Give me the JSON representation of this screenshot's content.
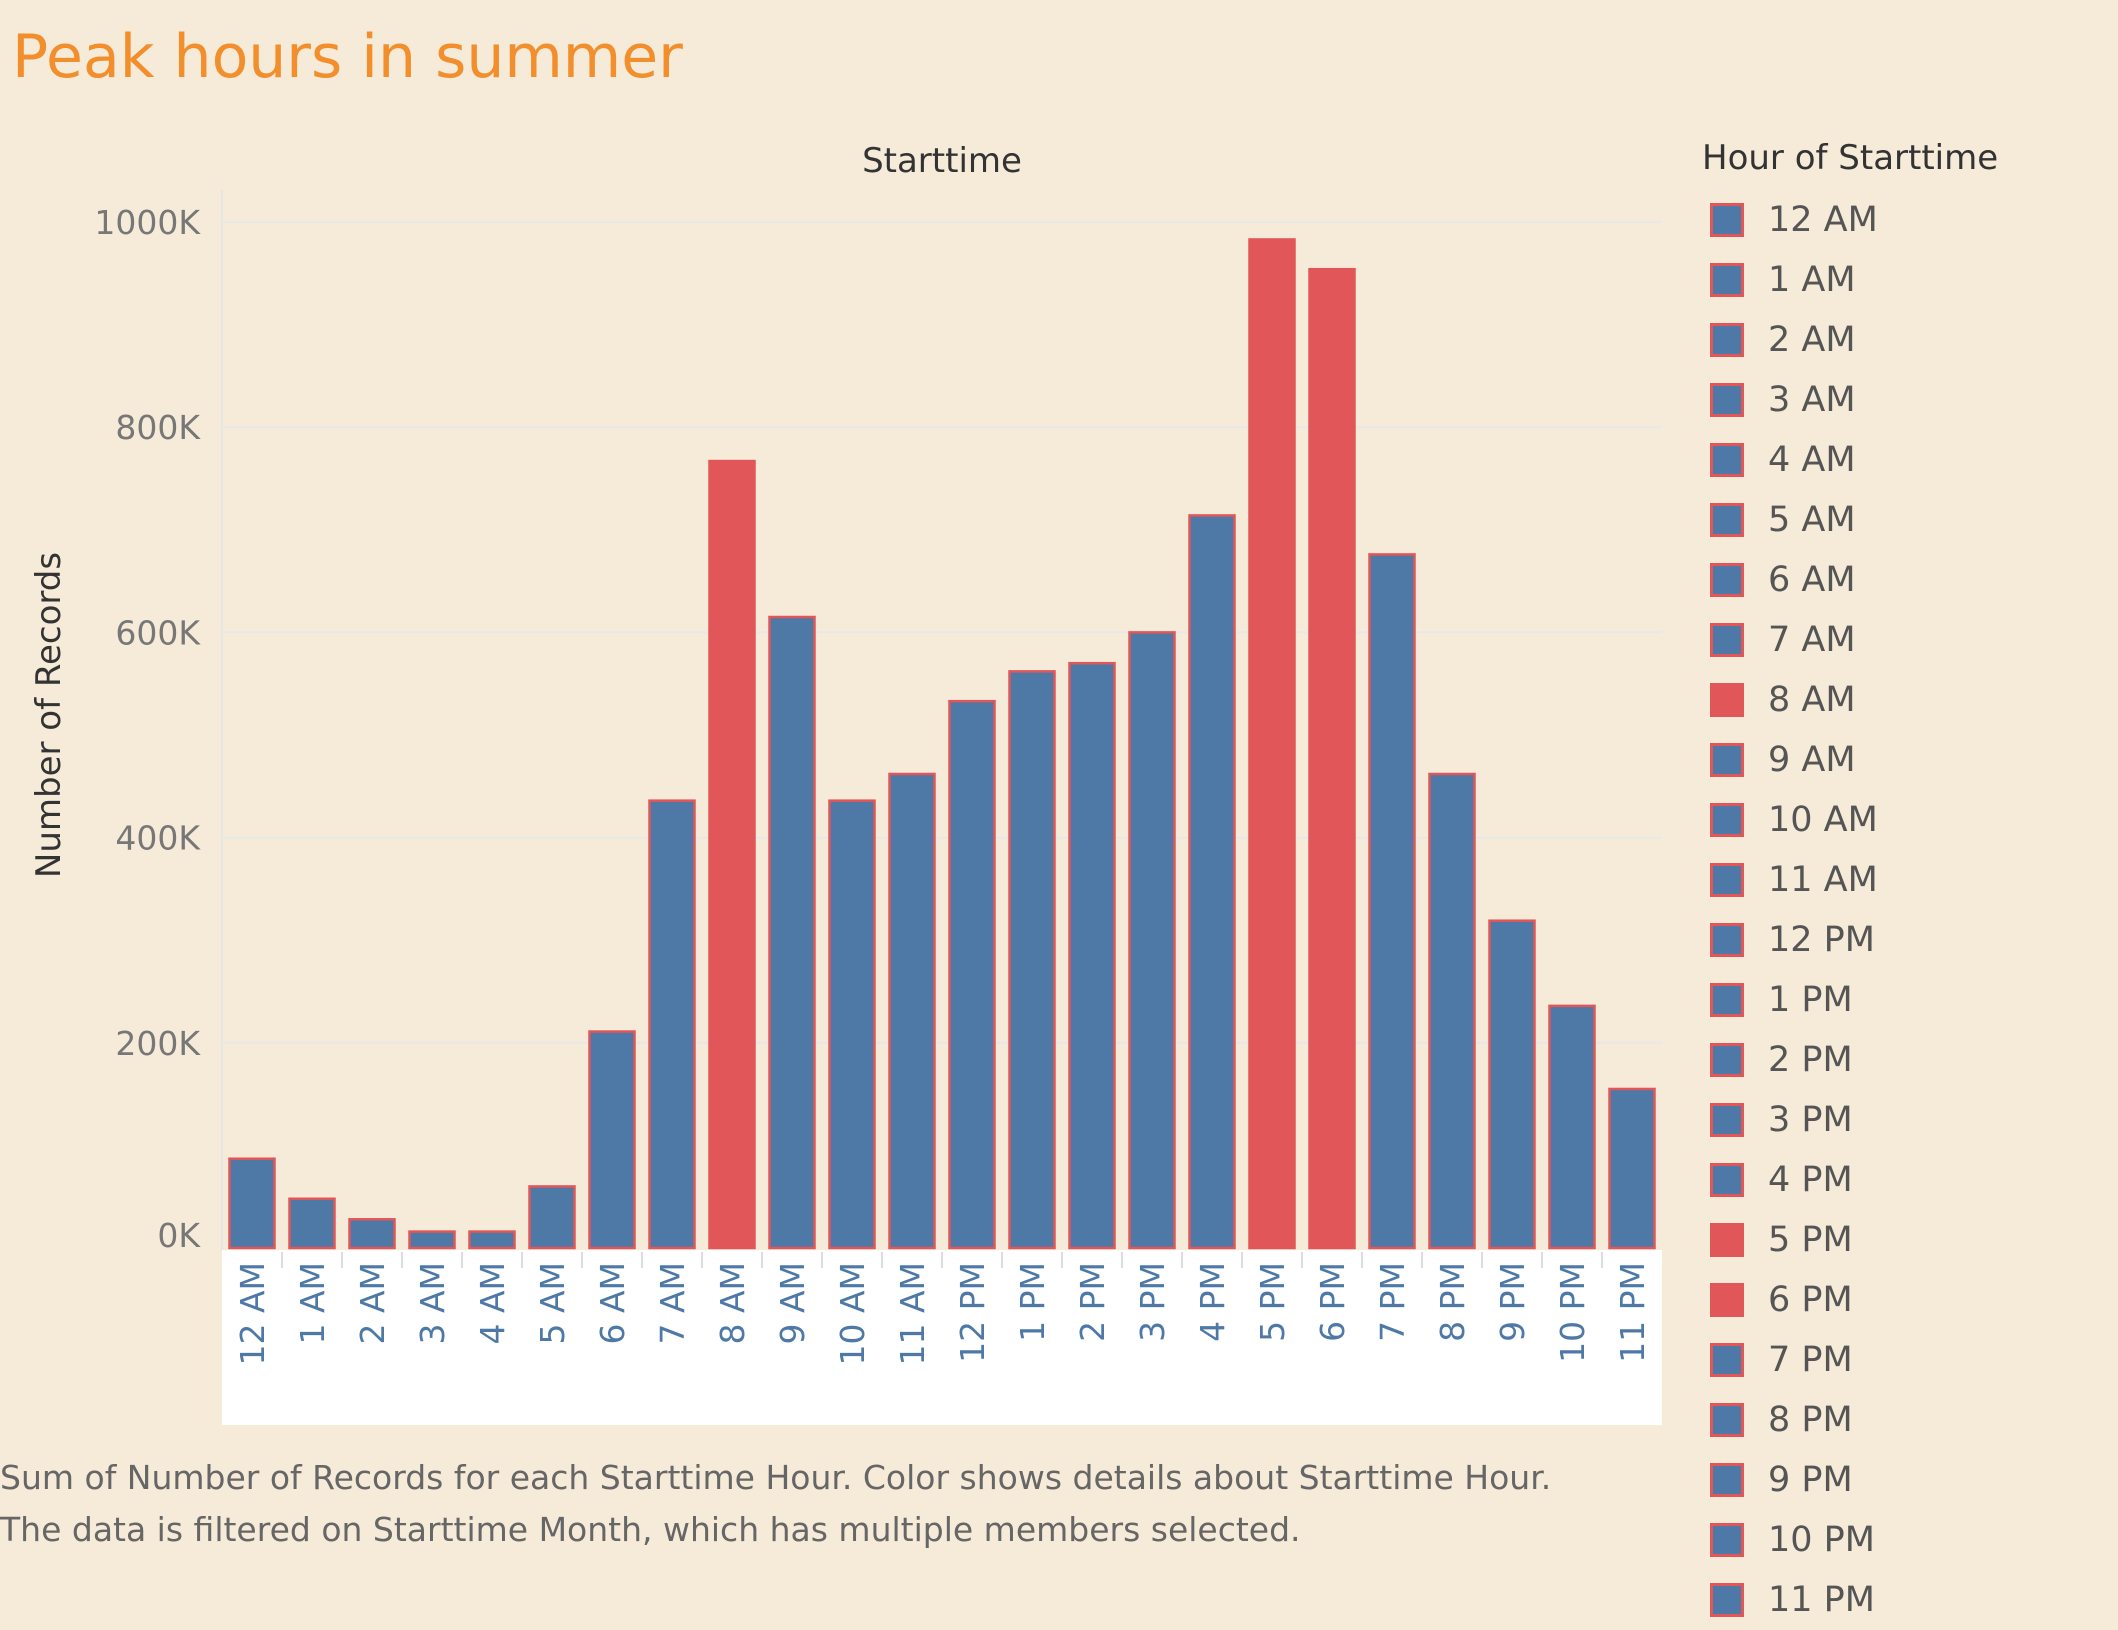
{
  "title": "Peak hours in summer",
  "caption": {
    "line1": "Sum of Number of Records for each Starttime Hour.  Color shows details about Starttime Hour.",
    "line2": "The data is filtered on Starttime Month, which has multiple members selected."
  },
  "legend": {
    "title": "Hour of Starttime"
  },
  "colors": {
    "normal": "#4e79a7",
    "peak": "#e15759",
    "border": "#e15759",
    "title": "#f28e2b",
    "grid": "#e8e8e8"
  },
  "chart_data": {
    "type": "bar",
    "title": "Peak hours in summer",
    "column_header": "Starttime",
    "ylabel": "Number of Records",
    "ylim": [
      0,
      1000000
    ],
    "yticks": [
      0,
      200000,
      400000,
      600000,
      800000,
      1000000
    ],
    "ytick_labels": [
      "0K",
      "200K",
      "400K",
      "600K",
      "800K",
      "1000K"
    ],
    "categories": [
      "12 AM",
      "1 AM",
      "2 AM",
      "3 AM",
      "4 AM",
      "5 AM",
      "6 AM",
      "7 AM",
      "8 AM",
      "9 AM",
      "10 AM",
      "11 AM",
      "12 PM",
      "1 PM",
      "2 PM",
      "3 PM",
      "4 PM",
      "5 PM",
      "6 PM",
      "7 PM",
      "8 PM",
      "9 PM",
      "10 PM",
      "11 PM"
    ],
    "values": [
      87000,
      48000,
      28000,
      16000,
      16000,
      60000,
      211000,
      436000,
      767000,
      615000,
      436000,
      462000,
      533000,
      562000,
      570000,
      600000,
      714000,
      983000,
      954000,
      676000,
      462000,
      319000,
      236000,
      155000
    ],
    "peak": [
      "8 AM",
      "5 PM",
      "6 PM"
    ]
  }
}
